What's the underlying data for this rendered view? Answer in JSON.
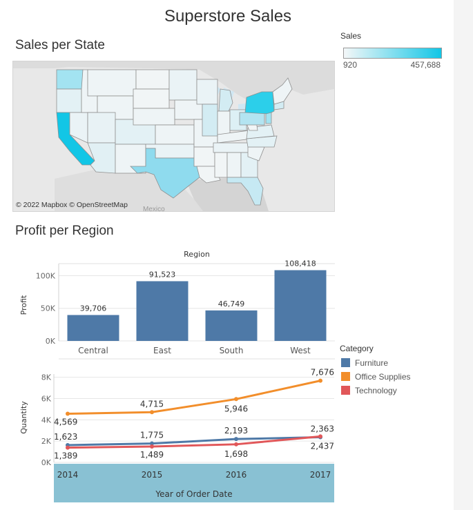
{
  "page": {
    "title": "Superstore Sales"
  },
  "map": {
    "title": "Sales per State",
    "credit": "© 2022 Mapbox © OpenStreetMap",
    "country_label": "Mexico",
    "legend": {
      "title": "Sales",
      "min_label": "920",
      "max_label": "457,688",
      "color_low": "#f4f7f8",
      "color_high": "#12c6e6"
    }
  },
  "profit_section": {
    "title": "Profit per Region"
  },
  "category_legend": {
    "title": "Category",
    "items": [
      {
        "label": "Furniture",
        "color": "#4e79a7"
      },
      {
        "label": "Office Supplies",
        "color": "#f28e2b"
      },
      {
        "label": "Technology",
        "color": "#e15759"
      }
    ]
  },
  "chart_data": [
    {
      "type": "bar",
      "title": "",
      "header": "Region",
      "categories": [
        "Central",
        "East",
        "South",
        "West"
      ],
      "values": [
        39706,
        91523,
        46749,
        108418
      ],
      "value_labels": [
        "39,706",
        "91,523",
        "46,749",
        "108,418"
      ],
      "ylabel": "Profit",
      "xlabel": "",
      "ylim": [
        0,
        110000
      ],
      "yticks": [
        0,
        50000,
        100000
      ],
      "ytick_labels": [
        "0K",
        "50K",
        "100K"
      ],
      "color": "#4e79a7",
      "grid": true
    },
    {
      "type": "line",
      "title": "",
      "x": [
        "2014",
        "2015",
        "2016",
        "2017"
      ],
      "xlabel": "Year of Order Date",
      "ylabel": "Quantity",
      "ylim": [
        0,
        8300
      ],
      "yticks": [
        0,
        2000,
        4000,
        6000,
        8000
      ],
      "ytick_labels": [
        "0K",
        "2K",
        "4K",
        "6K",
        "8K"
      ],
      "series": [
        {
          "name": "Furniture",
          "color": "#4e79a7",
          "values": [
            1623,
            1775,
            2193,
            2363
          ],
          "labels": [
            "1,623",
            "1,775",
            "2,193",
            "2,363"
          ]
        },
        {
          "name": "Office Supplies",
          "color": "#f28e2b",
          "values": [
            4569,
            4715,
            5946,
            7676
          ],
          "labels": [
            "4,569",
            "4,715",
            "5,946",
            "7,676"
          ]
        },
        {
          "name": "Technology",
          "color": "#e15759",
          "values": [
            1389,
            1489,
            1698,
            2437
          ],
          "labels": [
            "1,389",
            "1,489",
            "1,698",
            "2,437"
          ]
        }
      ],
      "grid": true
    }
  ]
}
